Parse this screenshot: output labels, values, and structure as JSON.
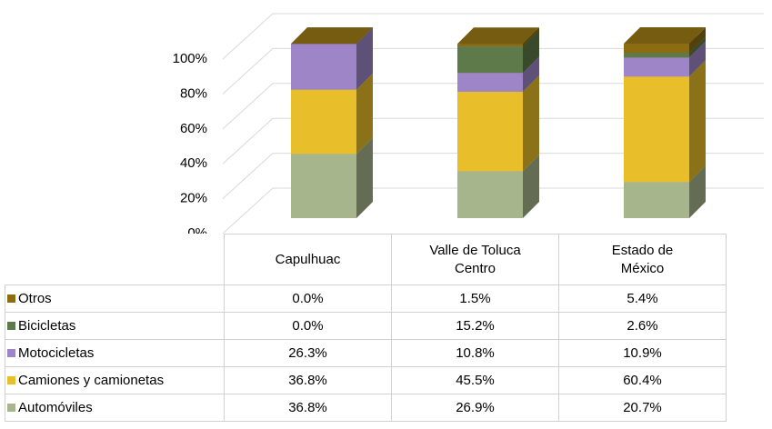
{
  "chart_data": {
    "type": "bar3d_stacked",
    "categories": [
      "Capulhuac",
      "Valle de Toluca Centro",
      "Estado de México"
    ],
    "series": [
      {
        "name": "Automóviles",
        "color": "#a6b58c",
        "values": [
          36.8,
          26.9,
          20.7
        ],
        "value_labels": [
          "36.8%",
          "26.9%",
          "20.7%"
        ]
      },
      {
        "name": "Camiones y camionetas",
        "color": "#e8be2a",
        "values": [
          36.8,
          45.5,
          60.4
        ],
        "value_labels": [
          "36.8%",
          "45.5%",
          "60.4%"
        ]
      },
      {
        "name": "Motocicletas",
        "color": "#9e85c8",
        "values": [
          26.3,
          10.8,
          10.9
        ],
        "value_labels": [
          "26.3%",
          "10.8%",
          "10.9%"
        ]
      },
      {
        "name": "Bicicletas",
        "color": "#5f7a4a",
        "values": [
          0.0,
          15.2,
          2.6
        ],
        "value_labels": [
          "0.0%",
          "15.2%",
          "2.6%"
        ]
      },
      {
        "name": "Otros",
        "color": "#8b6c13",
        "values": [
          0.0,
          1.5,
          5.4
        ],
        "value_labels": [
          "0.0%",
          "1.5%",
          "5.4%"
        ]
      }
    ],
    "ylim": [
      0,
      100
    ],
    "yticks": [
      {
        "value": 0,
        "label": "0%"
      },
      {
        "value": 20,
        "label": "20%"
      },
      {
        "value": 40,
        "label": "40%"
      },
      {
        "value": 60,
        "label": "60%"
      },
      {
        "value": 80,
        "label": "80%"
      },
      {
        "value": 100,
        "label": "100%"
      }
    ],
    "grid": true
  }
}
